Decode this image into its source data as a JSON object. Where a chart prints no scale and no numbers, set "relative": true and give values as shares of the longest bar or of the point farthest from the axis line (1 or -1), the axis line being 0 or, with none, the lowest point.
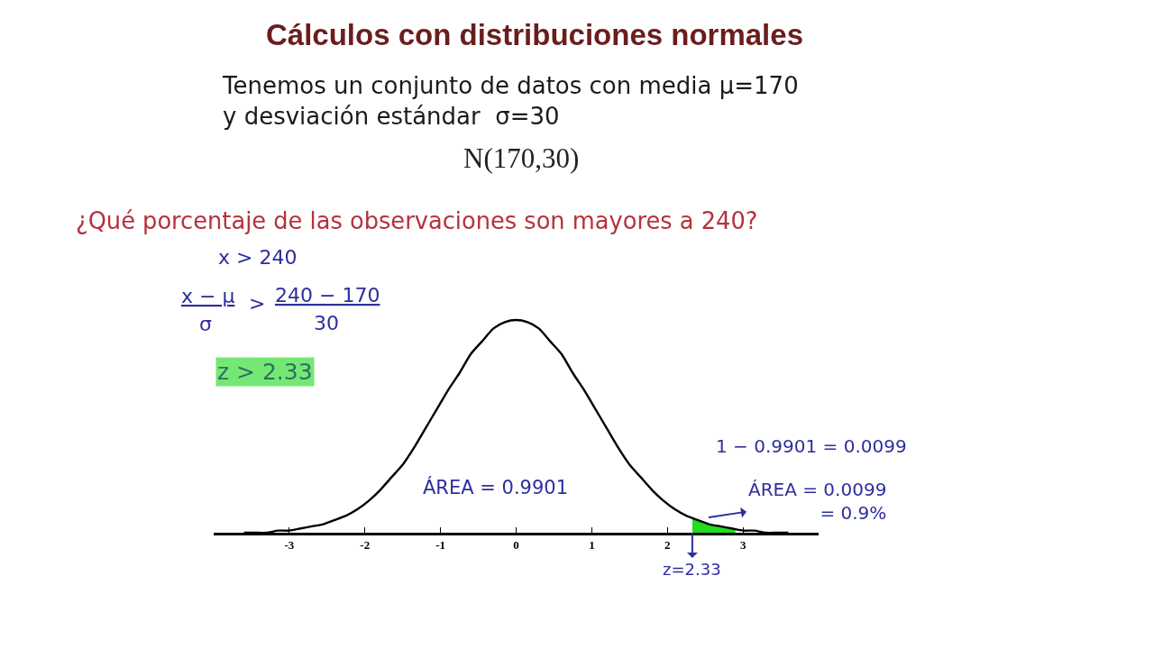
{
  "chart_data": {
    "type": "line",
    "title": "Cálculos con distribuciones normales",
    "subtitle": "Tenemos un conjunto de datos con media μ=170\ny desviación estándar  σ=30",
    "relative": true,
    "line_style": "solid",
    "xlim": [
      -4,
      4
    ],
    "xticks": [
      -3,
      -2,
      -1,
      0,
      1,
      2,
      3
    ],
    "series": [
      {
        "color": "#000000",
        "x": [
          -3.6,
          -3.45,
          -3.3,
          -3.15,
          -3.0,
          -2.85,
          -2.7,
          -2.55,
          -2.4,
          -2.25,
          -2.1,
          -1.95,
          -1.8,
          -1.65,
          -1.5,
          -1.35,
          -1.2,
          -1.05,
          -0.9,
          -0.75,
          -0.6,
          -0.45,
          -0.3,
          -0.15,
          0,
          0.15,
          0.3,
          0.45,
          0.6,
          0.75,
          0.9,
          1.05,
          1.2,
          1.35,
          1.5,
          1.65,
          1.8,
          1.95,
          2.1,
          2.25,
          2.4,
          2.55,
          2.7,
          2.85,
          3.0,
          3.15,
          3.3,
          3.45,
          3.6
        ],
        "values": [
          0.0,
          0.0,
          0.0,
          0.01,
          0.01,
          0.02,
          0.03,
          0.04,
          0.06,
          0.08,
          0.11,
          0.15,
          0.2,
          0.26,
          0.32,
          0.4,
          0.49,
          0.58,
          0.67,
          0.75,
          0.84,
          0.9,
          0.96,
          0.99,
          1.0,
          0.99,
          0.96,
          0.9,
          0.84,
          0.75,
          0.67,
          0.58,
          0.49,
          0.4,
          0.32,
          0.26,
          0.2,
          0.15,
          0.11,
          0.08,
          0.06,
          0.04,
          0.03,
          0.02,
          0.01,
          0.01,
          0.0,
          0.0,
          0.0
        ]
      },
      {
        "type": "area",
        "color": "#22dd22",
        "x": [
          2.33,
          2.4,
          2.5,
          2.6,
          2.7,
          2.8,
          2.9
        ],
        "values": [
          0.07,
          0.06,
          0.04,
          0.03,
          0.03,
          0.02,
          0.01
        ]
      }
    ],
    "annotations": [
      "N(170,30)",
      "¿Qué porcentaje de las observaciones son mayores a 240?",
      "x > 240",
      "x − μ",
      "σ",
      ">",
      "240 − 170",
      "30",
      "z > 2.33",
      "ÁREA = 0.9901",
      "1 − 0.9901 = 0.0099",
      "ÁREA = 0.0099\n= 0.9%",
      {
        "text": "z=2.33",
        "x": 2.33,
        "y": 0
      }
    ]
  }
}
